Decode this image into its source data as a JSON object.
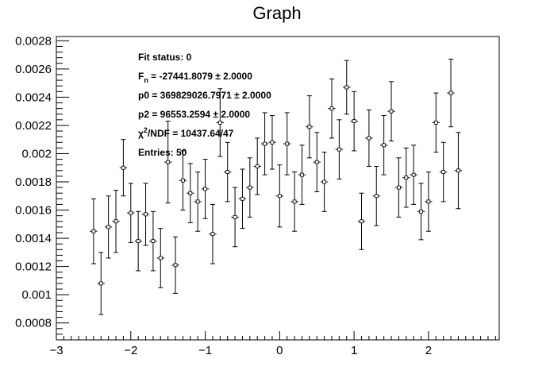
{
  "chart_data": {
    "type": "scatter",
    "title": "Graph",
    "xlabel": "",
    "ylabel": "",
    "xlim": [
      -3,
      2.95
    ],
    "ylim": [
      0.00068,
      0.00283
    ],
    "grid": false,
    "x_ticks": [
      -3,
      -2,
      -1,
      0,
      1,
      2
    ],
    "x_tick_labels": [
      "−3",
      "−2",
      "−1",
      "0",
      "1",
      "2"
    ],
    "y_ticks": [
      0.0008,
      0.001,
      0.0012,
      0.0014,
      0.0016,
      0.0018,
      0.002,
      0.0022,
      0.0024,
      0.0026,
      0.0028
    ],
    "y_tick_labels": [
      "0.0008",
      "0.001",
      "0.0012",
      "0.0014",
      "0.0016",
      "0.0018",
      "0.002",
      "0.0022",
      "0.0024",
      "0.0026",
      "0.0028"
    ],
    "series": [
      {
        "x": [
          -2.5,
          -2.4,
          -2.3,
          -2.2,
          -2.1,
          -2.0,
          -1.9,
          -1.8,
          -1.7,
          -1.6,
          -1.5,
          -1.4,
          -1.3,
          -1.2,
          -1.1,
          -1.0,
          -0.9,
          -0.8,
          -0.7,
          -0.6,
          -0.5,
          -0.4,
          -0.3,
          -0.2,
          -0.1,
          0.0,
          0.1,
          0.2,
          0.3,
          0.4,
          0.5,
          0.6,
          0.7,
          0.8,
          0.9,
          1.0,
          1.1,
          1.2,
          1.3,
          1.4,
          1.5,
          1.6,
          1.7,
          1.8,
          1.9,
          2.0,
          2.1,
          2.2,
          2.3,
          2.4
        ],
        "y": [
          0.00145,
          0.00108,
          0.00148,
          0.00152,
          0.0019,
          0.00158,
          0.00138,
          0.00157,
          0.00138,
          0.00126,
          0.00194,
          0.00121,
          0.00181,
          0.00172,
          0.00166,
          0.00175,
          0.00143,
          0.00222,
          0.00187,
          0.00155,
          0.00168,
          0.00176,
          0.00191,
          0.00207,
          0.00208,
          0.0017,
          0.00207,
          0.00166,
          0.00185,
          0.00219,
          0.00194,
          0.0018,
          0.00232,
          0.00203,
          0.00247,
          0.00223,
          0.00152,
          0.00211,
          0.0017,
          0.00206,
          0.0023,
          0.00176,
          0.00183,
          0.00185,
          0.00159,
          0.00166,
          0.00222,
          0.00187,
          0.00243,
          0.00188
        ],
        "y_err": [
          0.00023,
          0.00022,
          0.00022,
          0.00022,
          0.0002,
          0.00021,
          0.00021,
          0.00022,
          0.00021,
          0.00021,
          0.00029,
          0.0002,
          0.00021,
          0.00021,
          0.00021,
          0.00021,
          0.00021,
          0.00024,
          0.00021,
          0.00021,
          0.00021,
          0.00021,
          0.0002,
          0.00022,
          0.00019,
          0.00022,
          0.00022,
          0.00021,
          0.00021,
          0.00022,
          0.00021,
          0.00021,
          0.00021,
          0.00021,
          0.00019,
          0.00021,
          0.0002,
          0.0002,
          0.00021,
          0.00021,
          0.00021,
          0.00021,
          0.00021,
          0.00021,
          0.0002,
          0.00021,
          0.00021,
          0.00021,
          0.00024,
          0.00027
        ],
        "x_err": 0.05
      }
    ],
    "stats_box": [
      {
        "label": "Fit status: 0",
        "value": ""
      },
      {
        "label": "F",
        "sub": "n",
        "value": "= -27441.8079   ± 2.0000"
      },
      {
        "label": "p0 = 369829026.7971",
        "value": "± 2.0000"
      },
      {
        "label": "p2 = 96553.2594",
        "value": "± 2.0000"
      },
      {
        "label": "χ",
        "sup": "2",
        "value": "/NDF = 10437.64/47"
      },
      {
        "label": "Entries: 50",
        "value": ""
      }
    ]
  }
}
